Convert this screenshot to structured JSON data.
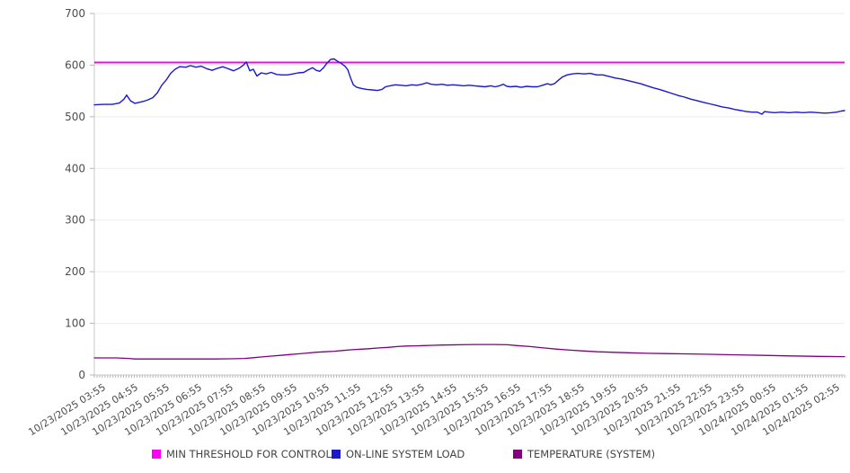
{
  "chart_data": {
    "type": "line",
    "title": "",
    "grid": true,
    "legend_position": "bottom",
    "colors": {
      "grid": "#ededed",
      "axis": "#c8c8c8",
      "tick": "#b5b5b5",
      "label_text": "#4d4d4d"
    },
    "y_axis": {
      "min": 0,
      "max": 700,
      "step": 100,
      "ticks": [
        0,
        100,
        200,
        300,
        400,
        500,
        600,
        700
      ]
    },
    "x_axis": {
      "range_hours": [
        0,
        23.5
      ],
      "minor_tick_minutes": 5,
      "labels": [
        "10/23/2025 03:55",
        "10/23/2025 04:55",
        "10/23/2025 05:55",
        "10/23/2025 06:55",
        "10/23/2025 07:55",
        "10/23/2025 08:55",
        "10/23/2025 09:55",
        "10/23/2025 10:55",
        "10/23/2025 11:55",
        "10/23/2025 12:55",
        "10/23/2025 13:55",
        "10/23/2025 14:55",
        "10/23/2025 15:55",
        "10/23/2025 16:55",
        "10/23/2025 17:55",
        "10/23/2025 18:55",
        "10/23/2025 19:55",
        "10/23/2025 20:55",
        "10/23/2025 21:55",
        "10/23/2025 22:55",
        "10/23/2025 23:55",
        "10/24/2025 00:55",
        "10/24/2025 01:55",
        "10/24/2025 02:55"
      ]
    },
    "series": [
      {
        "name": "MIN THRESHOLD FOR CONTROL",
        "color": "#fb00f1",
        "type": "threshold",
        "value": 605,
        "stroke_width": 2
      },
      {
        "name": "ON-LINE SYSTEM LOAD",
        "color": "#1a1acc",
        "type": "line",
        "stroke_width": 1.4,
        "points": [
          [
            0,
            523
          ],
          [
            0.28,
            524
          ],
          [
            0.56,
            524
          ],
          [
            0.79,
            527
          ],
          [
            0.93,
            534
          ],
          [
            1.01,
            542
          ],
          [
            1.13,
            531
          ],
          [
            1.27,
            526
          ],
          [
            1.41,
            528
          ],
          [
            1.55,
            530
          ],
          [
            1.69,
            533
          ],
          [
            1.83,
            537
          ],
          [
            1.97,
            546
          ],
          [
            2.11,
            561
          ],
          [
            2.25,
            571
          ],
          [
            2.39,
            584
          ],
          [
            2.53,
            592
          ],
          [
            2.67,
            597
          ],
          [
            2.87,
            596
          ],
          [
            3.01,
            599
          ],
          [
            3.18,
            596
          ],
          [
            3.35,
            598
          ],
          [
            3.52,
            593
          ],
          [
            3.69,
            590
          ],
          [
            3.86,
            594
          ],
          [
            4.02,
            597
          ],
          [
            4.19,
            593
          ],
          [
            4.36,
            589
          ],
          [
            4.53,
            594
          ],
          [
            4.67,
            600
          ],
          [
            4.76,
            606
          ],
          [
            4.87,
            589
          ],
          [
            4.98,
            592
          ],
          [
            5.09,
            579
          ],
          [
            5.23,
            585
          ],
          [
            5.38,
            583
          ],
          [
            5.54,
            586
          ],
          [
            5.71,
            582
          ],
          [
            5.88,
            581
          ],
          [
            6.05,
            581
          ],
          [
            6.22,
            583
          ],
          [
            6.39,
            585
          ],
          [
            6.56,
            586
          ],
          [
            6.7,
            591
          ],
          [
            6.84,
            595
          ],
          [
            6.95,
            590
          ],
          [
            7.06,
            588
          ],
          [
            7.18,
            595
          ],
          [
            7.29,
            604
          ],
          [
            7.4,
            611
          ],
          [
            7.51,
            612
          ],
          [
            7.63,
            607
          ],
          [
            7.74,
            603
          ],
          [
            7.85,
            598
          ],
          [
            7.94,
            591
          ],
          [
            8.02,
            576
          ],
          [
            8.11,
            562
          ],
          [
            8.22,
            557
          ],
          [
            8.36,
            555
          ],
          [
            8.53,
            553
          ],
          [
            8.7,
            552
          ],
          [
            8.87,
            551
          ],
          [
            9.01,
            553
          ],
          [
            9.12,
            558
          ],
          [
            9.26,
            560
          ],
          [
            9.43,
            562
          ],
          [
            9.6,
            561
          ],
          [
            9.77,
            560
          ],
          [
            9.94,
            562
          ],
          [
            10.1,
            561
          ],
          [
            10.27,
            563
          ],
          [
            10.41,
            566
          ],
          [
            10.55,
            563
          ],
          [
            10.72,
            562
          ],
          [
            10.89,
            563
          ],
          [
            11.06,
            561
          ],
          [
            11.23,
            562
          ],
          [
            11.4,
            561
          ],
          [
            11.57,
            560
          ],
          [
            11.74,
            561
          ],
          [
            11.91,
            560
          ],
          [
            12.08,
            559
          ],
          [
            12.24,
            558
          ],
          [
            12.41,
            560
          ],
          [
            12.55,
            558
          ],
          [
            12.69,
            560
          ],
          [
            12.81,
            563
          ],
          [
            12.92,
            559
          ],
          [
            13.03,
            558
          ],
          [
            13.2,
            559
          ],
          [
            13.37,
            557
          ],
          [
            13.54,
            559
          ],
          [
            13.71,
            558
          ],
          [
            13.88,
            558
          ],
          [
            14.04,
            561
          ],
          [
            14.19,
            564
          ],
          [
            14.3,
            562
          ],
          [
            14.41,
            564
          ],
          [
            14.52,
            570
          ],
          [
            14.66,
            577
          ],
          [
            14.81,
            581
          ],
          [
            14.97,
            583
          ],
          [
            15.14,
            584
          ],
          [
            15.34,
            583
          ],
          [
            15.53,
            584
          ],
          [
            15.73,
            581
          ],
          [
            15.93,
            581
          ],
          [
            16.13,
            578
          ],
          [
            16.32,
            575
          ],
          [
            16.52,
            573
          ],
          [
            16.72,
            570
          ],
          [
            16.92,
            567
          ],
          [
            17.11,
            564
          ],
          [
            17.31,
            560
          ],
          [
            17.51,
            556
          ],
          [
            17.7,
            553
          ],
          [
            17.9,
            549
          ],
          [
            18.1,
            545
          ],
          [
            18.3,
            541
          ],
          [
            18.49,
            538
          ],
          [
            18.69,
            534
          ],
          [
            18.89,
            531
          ],
          [
            19.08,
            528
          ],
          [
            19.28,
            525
          ],
          [
            19.48,
            522
          ],
          [
            19.67,
            519
          ],
          [
            19.87,
            517
          ],
          [
            20.07,
            514
          ],
          [
            20.27,
            512
          ],
          [
            20.43,
            510
          ],
          [
            20.6,
            509
          ],
          [
            20.77,
            509
          ],
          [
            20.91,
            505
          ],
          [
            20.99,
            510
          ],
          [
            21.13,
            509
          ],
          [
            21.3,
            508
          ],
          [
            21.53,
            509
          ],
          [
            21.76,
            508
          ],
          [
            21.98,
            509
          ],
          [
            22.21,
            508
          ],
          [
            22.44,
            509
          ],
          [
            22.66,
            508
          ],
          [
            22.89,
            507
          ],
          [
            23.09,
            508
          ],
          [
            23.25,
            509
          ],
          [
            23.39,
            511
          ],
          [
            23.5,
            512
          ]
        ]
      },
      {
        "name": "TEMPERATURE (SYSTEM)",
        "color": "#800080",
        "type": "line",
        "stroke_width": 1.3,
        "points": [
          [
            0,
            33
          ],
          [
            0.7,
            33
          ],
          [
            1.07,
            32
          ],
          [
            1.27,
            31
          ],
          [
            2.11,
            31
          ],
          [
            2.96,
            31
          ],
          [
            3.8,
            31
          ],
          [
            4.42,
            31.5
          ],
          [
            4.7,
            32
          ],
          [
            4.98,
            33.5
          ],
          [
            5.26,
            35
          ],
          [
            5.54,
            36.5
          ],
          [
            5.83,
            38
          ],
          [
            6.11,
            39.5
          ],
          [
            6.39,
            41
          ],
          [
            6.67,
            42.5
          ],
          [
            6.95,
            44
          ],
          [
            7.23,
            45
          ],
          [
            7.51,
            46
          ],
          [
            7.8,
            47.5
          ],
          [
            8.08,
            49
          ],
          [
            8.36,
            50
          ],
          [
            8.64,
            51
          ],
          [
            8.92,
            52.5
          ],
          [
            9.2,
            53.5
          ],
          [
            9.49,
            55
          ],
          [
            9.77,
            56
          ],
          [
            10.05,
            56.5
          ],
          [
            10.33,
            57
          ],
          [
            10.61,
            57.5
          ],
          [
            10.89,
            58
          ],
          [
            11.4,
            58.5
          ],
          [
            11.96,
            59
          ],
          [
            12.52,
            59
          ],
          [
            12.95,
            58.5
          ],
          [
            13.23,
            57
          ],
          [
            13.65,
            55
          ],
          [
            14.07,
            52.5
          ],
          [
            14.5,
            50
          ],
          [
            14.92,
            48
          ],
          [
            15.34,
            46.5
          ],
          [
            15.77,
            45
          ],
          [
            16.19,
            44
          ],
          [
            16.75,
            43
          ],
          [
            17.31,
            42
          ],
          [
            17.87,
            41.5
          ],
          [
            18.44,
            41
          ],
          [
            19.28,
            40
          ],
          [
            20.13,
            39
          ],
          [
            20.97,
            38
          ],
          [
            21.82,
            37
          ],
          [
            22.66,
            36
          ],
          [
            23.5,
            35.5
          ]
        ]
      }
    ]
  }
}
